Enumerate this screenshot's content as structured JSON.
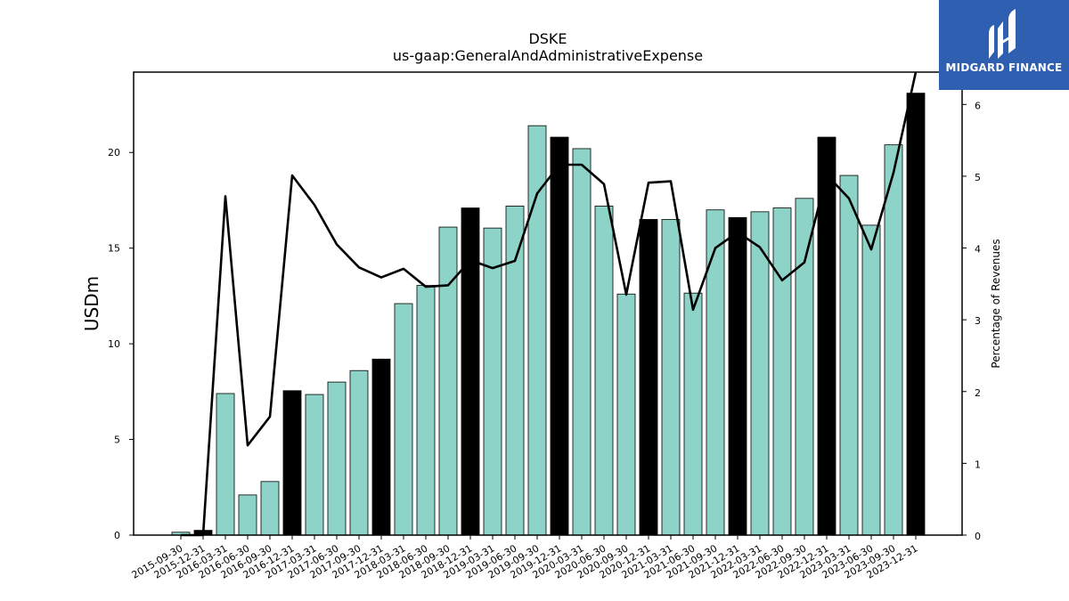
{
  "chart_data": {
    "type": "bar",
    "title": "DSKE",
    "subtitle": "us-gaap:GeneralAndAdministrativeExpense",
    "ylabel": "USDm",
    "y2label": "Percentage of Revenues",
    "ylim": [
      0,
      24.2
    ],
    "y2lim": [
      0,
      6.45
    ],
    "yticks": [
      0,
      5,
      10,
      15,
      20
    ],
    "y2ticks": [
      0,
      1,
      2,
      3,
      4,
      5,
      6
    ],
    "categories": [
      "2015-09-30",
      "2015-12-31",
      "2016-03-31",
      "2016-06-30",
      "2016-09-30",
      "2016-12-31",
      "2017-03-31",
      "2017-06-30",
      "2017-09-30",
      "2017-12-31",
      "2018-03-31",
      "2018-06-30",
      "2018-09-30",
      "2018-12-31",
      "2019-03-31",
      "2019-06-30",
      "2019-09-30",
      "2019-12-31",
      "2020-03-31",
      "2020-06-30",
      "2020-09-30",
      "2020-12-31",
      "2021-03-31",
      "2021-06-30",
      "2021-09-30",
      "2021-12-31",
      "2022-03-31",
      "2022-06-30",
      "2022-09-30",
      "2022-12-31",
      "2023-03-31",
      "2023-06-30",
      "2023-09-30",
      "2023-12-31"
    ],
    "series": [
      {
        "kind": "bar",
        "values": [
          0.15,
          0.25,
          7.4,
          2.1,
          2.8,
          7.55,
          7.35,
          8.0,
          8.6,
          9.2,
          12.1,
          13.05,
          16.1,
          17.1,
          16.05,
          17.2,
          21.4,
          20.8,
          20.2,
          17.2,
          12.6,
          16.5,
          16.5,
          12.65,
          17.0,
          16.6,
          16.9,
          17.1,
          17.6,
          20.8,
          18.8,
          16.2,
          20.4,
          23.1
        ],
        "highlight_categories": [
          "2015-12-31",
          "2016-12-31",
          "2017-12-31",
          "2018-12-31",
          "2019-12-31",
          "2020-12-31",
          "2021-12-31",
          "2022-12-31",
          "2023-12-31"
        ]
      },
      {
        "kind": "line",
        "axis": "right",
        "values": [
          0.0,
          0.0,
          4.72,
          1.25,
          1.65,
          5.01,
          4.6,
          4.05,
          3.73,
          3.59,
          3.71,
          3.46,
          3.48,
          3.83,
          3.72,
          3.82,
          4.76,
          5.16,
          5.16,
          4.89,
          3.35,
          4.91,
          4.93,
          3.14,
          4.0,
          4.22,
          4.01,
          3.55,
          3.8,
          5.02,
          4.69,
          3.98,
          5.05,
          6.45
        ]
      }
    ],
    "colors": {
      "bar": "#8dd3c7",
      "highlight_bar": "#000000",
      "line": "#000000"
    }
  },
  "logo": {
    "text": "MIDGARD FINANCE",
    "background": "#2e5fb0"
  }
}
